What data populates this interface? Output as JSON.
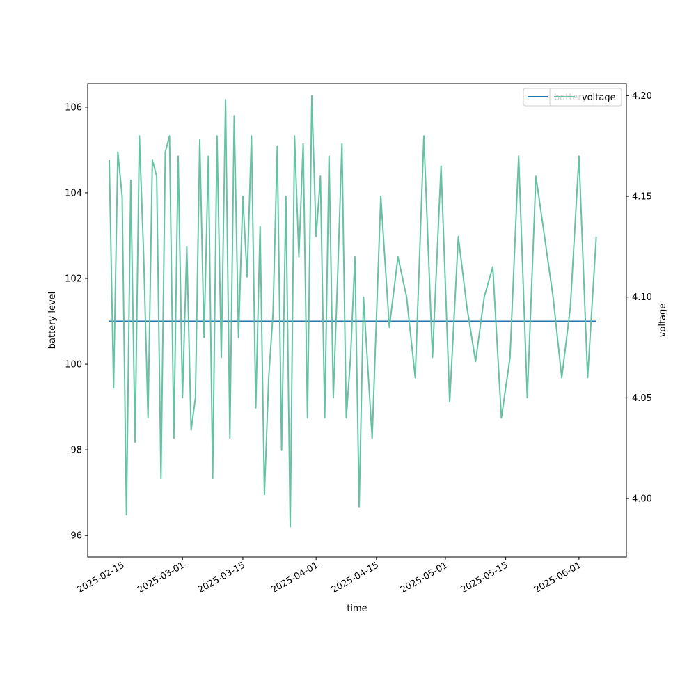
{
  "chart_data": {
    "type": "line",
    "title": "",
    "xlabel": "time",
    "ylabel": "battery level",
    "y2label": "voltage",
    "x_tick_labels": [
      "2025-02-15",
      "2025-03-01",
      "2025-03-15",
      "2025-04-01",
      "2025-04-15",
      "2025-05-01",
      "2025-05-15",
      "2025-06-01"
    ],
    "x_ticks": [
      "2025-02-15",
      "2025-03-01",
      "2025-03-15",
      "2025-04-01",
      "2025-04-15",
      "2025-05-01",
      "2025-05-15",
      "2025-06-01"
    ],
    "y_ticks": [
      96,
      98,
      100,
      102,
      104,
      106
    ],
    "y2_ticks": [
      4.0,
      4.05,
      4.1,
      4.15,
      4.2
    ],
    "xlim": [
      "2025-02-07",
      "2025-06-12"
    ],
    "ylim": [
      95.5,
      106.55
    ],
    "y2lim": [
      3.971,
      4.206
    ],
    "grid": false,
    "legend_placement": "top-right",
    "series": [
      {
        "name": "battery",
        "axis": "left",
        "color": "#1f77b4",
        "x": [
          "2025-02-12",
          "2025-06-05"
        ],
        "values": [
          101,
          101
        ]
      },
      {
        "name": "voltage",
        "axis": "right",
        "color": "#66c2a5",
        "x": [
          "2025-02-12",
          "2025-02-13",
          "2025-02-14",
          "2025-02-15",
          "2025-02-16",
          "2025-02-17",
          "2025-02-18",
          "2025-02-19",
          "2025-02-20",
          "2025-02-21",
          "2025-02-22",
          "2025-02-23",
          "2025-02-24",
          "2025-02-25",
          "2025-02-26",
          "2025-02-27",
          "2025-02-28",
          "2025-03-01",
          "2025-03-02",
          "2025-03-03",
          "2025-03-04",
          "2025-03-05",
          "2025-03-06",
          "2025-03-07",
          "2025-03-08",
          "2025-03-09",
          "2025-03-10",
          "2025-03-11",
          "2025-03-12",
          "2025-03-13",
          "2025-03-14",
          "2025-03-15",
          "2025-03-16",
          "2025-03-17",
          "2025-03-18",
          "2025-03-19",
          "2025-03-20",
          "2025-03-21",
          "2025-03-22",
          "2025-03-23",
          "2025-03-24",
          "2025-03-25",
          "2025-03-26",
          "2025-03-27",
          "2025-03-28",
          "2025-03-29",
          "2025-03-30",
          "2025-03-31",
          "2025-04-01",
          "2025-04-02",
          "2025-04-03",
          "2025-04-04",
          "2025-04-05",
          "2025-04-06",
          "2025-04-07",
          "2025-04-08",
          "2025-04-09",
          "2025-04-10",
          "2025-04-11",
          "2025-04-12",
          "2025-04-14",
          "2025-04-16",
          "2025-04-18",
          "2025-04-20",
          "2025-04-22",
          "2025-04-24",
          "2025-04-26",
          "2025-04-28",
          "2025-04-30",
          "2025-05-02",
          "2025-05-04",
          "2025-05-06",
          "2025-05-08",
          "2025-05-10",
          "2025-05-12",
          "2025-05-14",
          "2025-05-16",
          "2025-05-18",
          "2025-05-20",
          "2025-05-22",
          "2025-05-24",
          "2025-05-26",
          "2025-05-28",
          "2025-05-30",
          "2025-06-01",
          "2025-06-03",
          "2025-06-05"
        ],
        "values": [
          4.168,
          4.055,
          4.172,
          4.15,
          3.992,
          4.158,
          4.028,
          4.18,
          4.12,
          4.04,
          4.168,
          4.16,
          4.01,
          4.172,
          4.18,
          4.03,
          4.17,
          4.05,
          4.125,
          4.034,
          4.05,
          4.178,
          4.08,
          4.17,
          4.01,
          4.18,
          4.07,
          4.198,
          4.03,
          4.19,
          4.08,
          4.15,
          4.11,
          4.18,
          4.045,
          4.135,
          4.002,
          4.06,
          4.092,
          4.175,
          4.024,
          4.15,
          3.986,
          4.18,
          4.12,
          4.176,
          4.04,
          4.2,
          4.13,
          4.16,
          4.04,
          4.17,
          4.05,
          4.11,
          4.176,
          4.04,
          4.07,
          4.12,
          3.996,
          4.1,
          4.03,
          4.15,
          4.085,
          4.12,
          4.1,
          4.06,
          4.18,
          4.07,
          4.165,
          4.048,
          4.13,
          4.095,
          4.068,
          4.1,
          4.115,
          4.04,
          4.07,
          4.17,
          4.05,
          4.16,
          4.13,
          4.1,
          4.06,
          4.095,
          4.17,
          4.06,
          4.13
        ]
      }
    ]
  }
}
